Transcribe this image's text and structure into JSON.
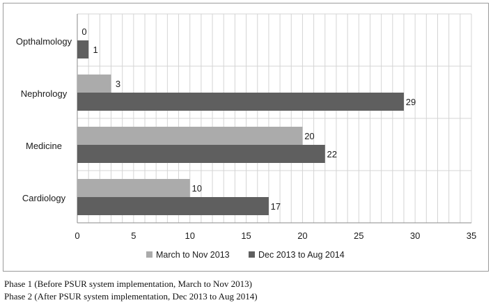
{
  "chart_data": {
    "type": "bar",
    "orientation": "horizontal",
    "categories": [
      "Opthalmology",
      "Nephrology",
      "Medicine",
      "Cardiology"
    ],
    "series": [
      {
        "name": "March to Nov 2013",
        "values": [
          0,
          3,
          20,
          10
        ],
        "color": "#ababab"
      },
      {
        "name": "Dec 2013 to Aug 2014",
        "values": [
          1,
          29,
          22,
          17
        ],
        "color": "#5f5f5f"
      }
    ],
    "xlim": [
      0,
      35
    ],
    "xticks": [
      0,
      5,
      10,
      15,
      20,
      25,
      30,
      35
    ],
    "grid": true,
    "legend_position": "bottom",
    "title": "",
    "xlabel": "",
    "ylabel": ""
  },
  "notes": [
    "Phase 1 (Before PSUR system implementation, March to Nov 2013)",
    "Phase 2 (After PSUR system implementation, Dec 2013 to Aug 2014)"
  ]
}
